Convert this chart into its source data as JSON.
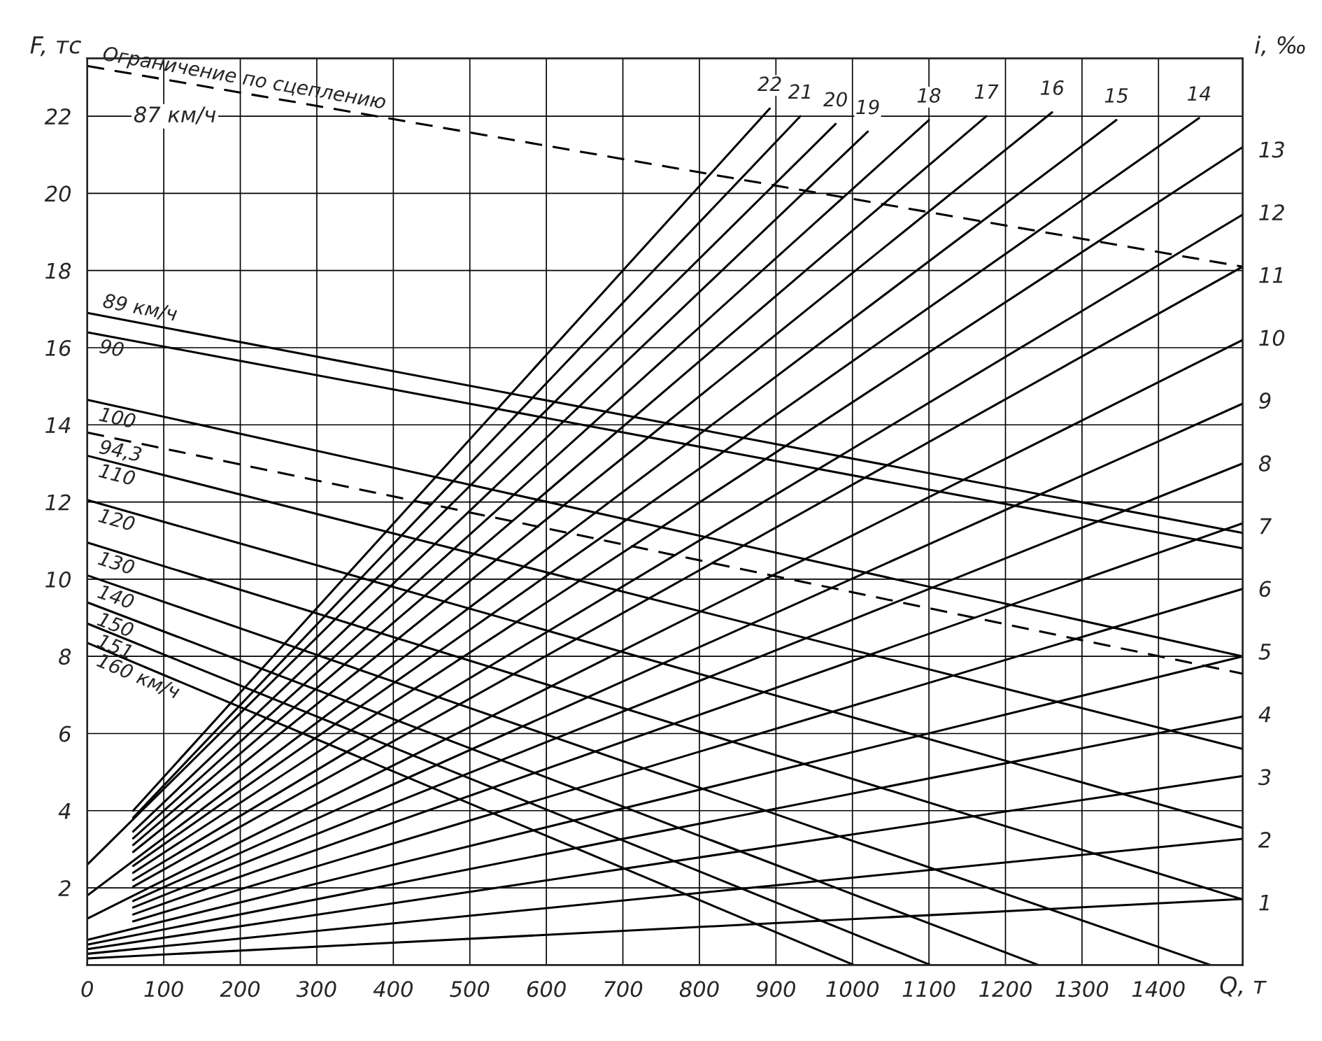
{
  "chart_data": {
    "type": "line",
    "xlabel": "Q, т",
    "ylabel": "F, тс",
    "y2label": "i, ‰",
    "xlim": [
      0,
      1510
    ],
    "ylim": [
      0,
      23.5
    ],
    "y2lim": [
      0,
      14.45
    ],
    "xticks": [
      {
        "value": 0,
        "label": "0"
      },
      100,
      200,
      300,
      400,
      500,
      600,
      700,
      800,
      900,
      1000,
      1100,
      1200,
      1300,
      1400
    ],
    "yticks": [
      {
        "value": 0,
        "label": null
      },
      2,
      4,
      6,
      8,
      10,
      12,
      14,
      16,
      18,
      20,
      22
    ],
    "y2ticks": [
      1,
      2,
      3,
      4,
      5,
      6,
      7,
      8,
      9,
      10,
      11,
      12,
      13
    ],
    "grid": true,
    "annotations": [
      "87 км/ч"
    ],
    "series": [
      {
        "name": "Ограничение по сцеплению",
        "color": "#000000",
        "line_style": "dashed",
        "x": [
          0,
          1510
        ],
        "values": [
          23.3,
          18.1
        ]
      },
      {
        "name": "89 км/ч",
        "color": "#000000",
        "x": [
          0,
          1510
        ],
        "values": [
          16.9,
          11.2
        ]
      },
      {
        "name": "90",
        "color": "#000000",
        "x": [
          0,
          1510
        ],
        "values": [
          16.4,
          10.8
        ]
      },
      {
        "name": "100",
        "color": "#000000",
        "x": [
          0,
          1510
        ],
        "values": [
          14.65,
          8.0
        ]
      },
      {
        "name": "94,3",
        "color": "#000000",
        "line_style": "dashed",
        "x": [
          0,
          1510
        ],
        "values": [
          13.8,
          7.55
        ]
      },
      {
        "name": "110",
        "color": "#000000",
        "x": [
          0,
          1510
        ],
        "values": [
          13.2,
          5.6
        ]
      },
      {
        "name": "120",
        "color": "#000000",
        "x": [
          0,
          1510
        ],
        "values": [
          12.05,
          3.55
        ]
      },
      {
        "name": "130",
        "color": "#000000",
        "x": [
          0,
          1510
        ],
        "values": [
          10.95,
          1.7
        ]
      },
      {
        "name": "140",
        "color": "#000000",
        "x": [
          0,
          1468
        ],
        "values": [
          10.1,
          0
        ]
      },
      {
        "name": "150",
        "color": "#000000",
        "x": [
          0,
          1243
        ],
        "values": [
          9.4,
          0
        ]
      },
      {
        "name": "151",
        "color": "#000000",
        "x": [
          0,
          1102
        ],
        "values": [
          8.85,
          0
        ]
      },
      {
        "name": "160 км/ч",
        "color": "#000000",
        "x": [
          0,
          1002
        ],
        "values": [
          8.35,
          0
        ]
      },
      {
        "color": "#000000",
        "x": [
          0,
          1510
        ],
        "values": [
          0.17,
          1.71
        ]
      },
      {
        "color": "#000000",
        "x": [
          0,
          1510
        ],
        "values": [
          0.29,
          3.27
        ]
      },
      {
        "color": "#000000",
        "x": [
          0,
          1510
        ],
        "values": [
          0.41,
          4.9
        ]
      },
      {
        "color": "#000000",
        "x": [
          0,
          1510
        ],
        "values": [
          0.53,
          6.44
        ]
      },
      {
        "color": "#000000",
        "x": [
          0,
          1510
        ],
        "values": [
          0.65,
          8.0
        ]
      },
      {
        "color": "#000000",
        "x": [
          60,
          1510
        ],
        "values": [
          1.13,
          9.75
        ]
      },
      {
        "color": "#000000",
        "x": [
          60,
          1510
        ],
        "values": [
          1.31,
          11.45
        ]
      },
      {
        "color": "#000000",
        "x": [
          60,
          1510
        ],
        "values": [
          1.49,
          13.0
        ]
      },
      {
        "color": "#000000",
        "x": [
          60,
          1510
        ],
        "values": [
          1.66,
          14.55
        ]
      },
      {
        "color": "#000000",
        "x": [
          0,
          1510
        ],
        "values": [
          1.2,
          16.2
        ]
      },
      {
        "color": "#000000",
        "x": [
          60,
          1510
        ],
        "values": [
          2.03,
          18.1
        ]
      },
      {
        "color": "#000000",
        "x": [
          60,
          1510
        ],
        "values": [
          2.2,
          19.45
        ]
      },
      {
        "color": "#000000",
        "x": [
          60,
          1510
        ],
        "values": [
          2.39,
          21.2
        ]
      },
      {
        "name": "14",
        "color": "#000000",
        "x": [
          60,
          1453
        ],
        "values": [
          2.57,
          21.95
        ]
      },
      {
        "name": "15",
        "color": "#000000",
        "x": [
          0,
          1345
        ],
        "values": [
          1.8,
          21.9
        ]
      },
      {
        "name": "16",
        "color": "#000000",
        "x": [
          60,
          1261
        ],
        "values": [
          2.93,
          22.1
        ]
      },
      {
        "name": "17",
        "color": "#000000",
        "x": [
          60,
          1175
        ],
        "values": [
          3.11,
          22.0
        ]
      },
      {
        "name": "18",
        "color": "#000000",
        "x": [
          60,
          1100
        ],
        "values": [
          3.28,
          21.9
        ]
      },
      {
        "name": "19",
        "color": "#000000",
        "x": [
          60,
          1020
        ],
        "values": [
          3.46,
          21.6
        ]
      },
      {
        "name": "20",
        "color": "#000000",
        "x": [
          0,
          978
        ],
        "values": [
          2.6,
          21.8
        ]
      },
      {
        "name": "21",
        "color": "#000000",
        "x": [
          60,
          932
        ],
        "values": [
          3.82,
          22.0
        ]
      },
      {
        "name": "22",
        "color": "#000000",
        "x": [
          60,
          892
        ],
        "values": [
          4.0,
          22.2
        ]
      }
    ]
  }
}
